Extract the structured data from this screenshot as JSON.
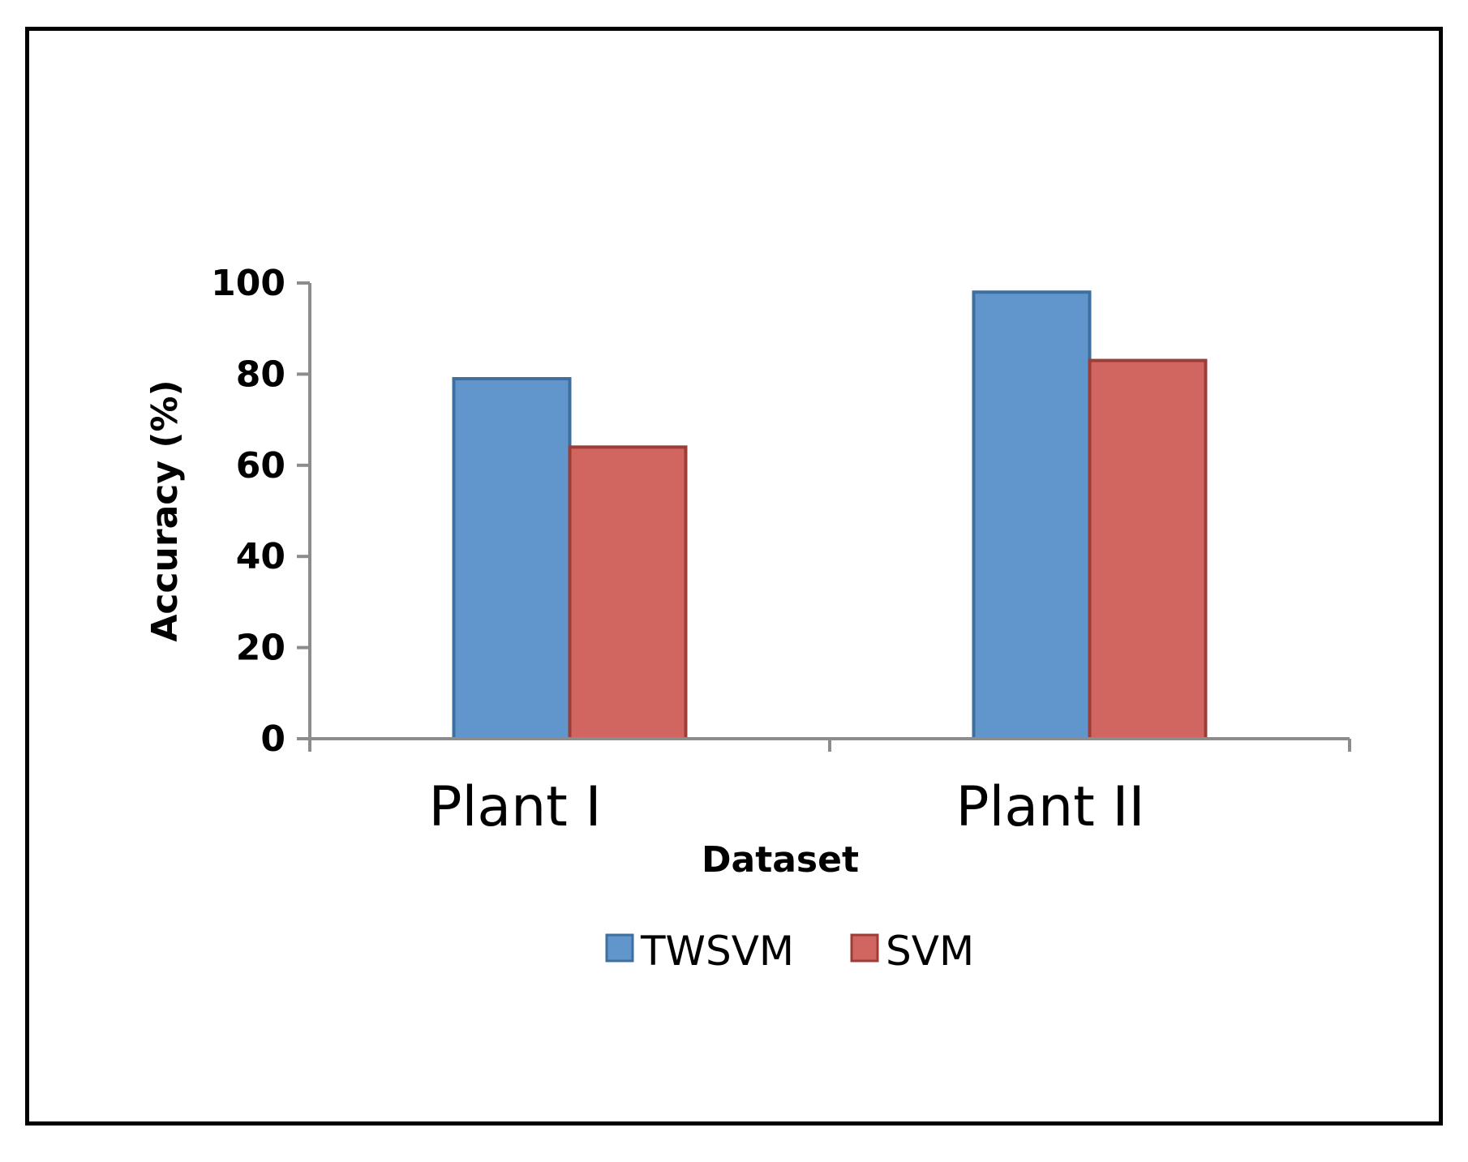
{
  "chart_data": {
    "type": "bar",
    "title": "",
    "xlabel": "Dataset",
    "ylabel": "Accuracy (%)",
    "categories": [
      "Plant I",
      "Plant II"
    ],
    "series": [
      {
        "name": "TWSVM",
        "values": [
          79,
          98
        ],
        "color": "#6096cb"
      },
      {
        "name": "SVM",
        "values": [
          64,
          83
        ],
        "color": "#d0665f"
      }
    ],
    "ylim": [
      0,
      100
    ],
    "yticks": [
      "0",
      "20",
      "40",
      "60",
      "80",
      "100"
    ],
    "grid": false,
    "legend": "bottom"
  }
}
